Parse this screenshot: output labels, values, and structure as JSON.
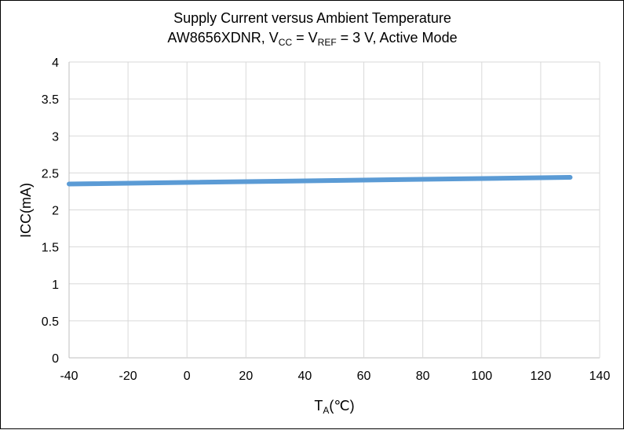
{
  "chart_data": {
    "type": "line",
    "title": "Supply Current versus Ambient Temperature",
    "subtitle": {
      "part1": "AW8656XDNR, V",
      "sub1": "CC",
      "part2": " = V",
      "sub2": "REF",
      "part3": " = 3 V, Active Mode"
    },
    "xlabel": {
      "main": "T",
      "sub": "A",
      "unit": "(℃)"
    },
    "ylabel": "ICC(mA)",
    "xlim": [
      -40,
      140
    ],
    "ylim": [
      0,
      4
    ],
    "xticks": [
      -40,
      -20,
      0,
      20,
      40,
      60,
      80,
      100,
      120,
      140
    ],
    "yticks": [
      0,
      0.5,
      1,
      1.5,
      2,
      2.5,
      3,
      3.5,
      4
    ],
    "grid": true,
    "series": [
      {
        "name": "ICC",
        "color": "#5B9BD5",
        "x": [
          -40,
          130
        ],
        "y": [
          2.35,
          2.44
        ]
      }
    ]
  }
}
